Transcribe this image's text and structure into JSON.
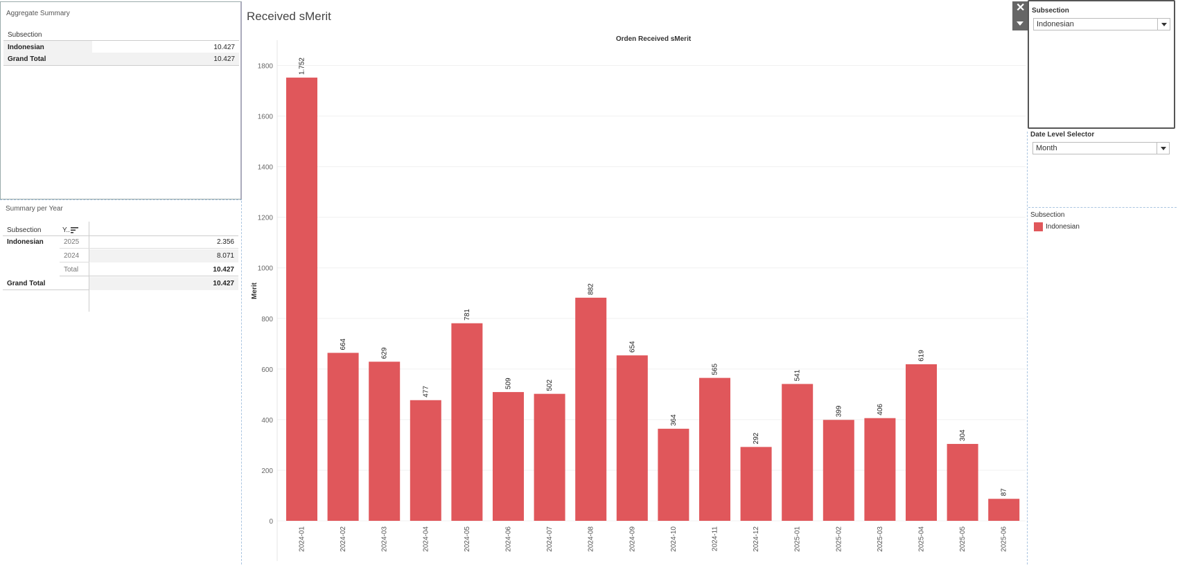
{
  "aggregate_summary": {
    "title": "Aggregate Summary",
    "col_header": "Subsection",
    "rows": [
      {
        "label": "Indonesian",
        "value": "10.427"
      },
      {
        "label": "Grand Total",
        "value": "10.427"
      }
    ]
  },
  "summary_per_year": {
    "title": "Summary per Year",
    "col_subsection": "Subsection",
    "col_year": "Y..",
    "subsection": "Indonesian",
    "rows": [
      {
        "year": "2025",
        "value": "2.356"
      },
      {
        "year": "2024",
        "value": "8.071"
      },
      {
        "year": "Total",
        "value": "10.427"
      }
    ],
    "grand_total_label": "Grand Total",
    "grand_total_value": "10.427"
  },
  "dashboard_title": "Received sMerit",
  "filters": {
    "subsection_title": "Subsection",
    "subsection_value": "Indonesian",
    "date_level_title": "Date Level Selector",
    "date_level_value": "Month"
  },
  "legend": {
    "title": "Subsection",
    "items": [
      {
        "label": "Indonesian",
        "color": "#e0575b"
      }
    ]
  },
  "chart_data": {
    "type": "bar",
    "title": "Orden Received sMerit",
    "ylabel": "Merit",
    "xlabel": "",
    "ylim": [
      0,
      1900
    ],
    "yticks": [
      0,
      200,
      400,
      600,
      800,
      1000,
      1200,
      1400,
      1600,
      1800
    ],
    "grid": true,
    "color": "#e0575b",
    "categories": [
      "2024-01",
      "2024-02",
      "2024-03",
      "2024-04",
      "2024-05",
      "2024-06",
      "2024-07",
      "2024-08",
      "2024-09",
      "2024-10",
      "2024-11",
      "2024-12",
      "2025-01",
      "2025-02",
      "2025-03",
      "2025-04",
      "2025-05",
      "2025-06"
    ],
    "values": [
      1752,
      664,
      629,
      477,
      781,
      509,
      502,
      882,
      654,
      364,
      565,
      292,
      541,
      399,
      406,
      619,
      304,
      87
    ],
    "value_labels": [
      "1.752",
      "664",
      "629",
      "477",
      "781",
      "509",
      "502",
      "882",
      "654",
      "364",
      "565",
      "292",
      "541",
      "399",
      "406",
      "619",
      "304",
      "87"
    ]
  }
}
